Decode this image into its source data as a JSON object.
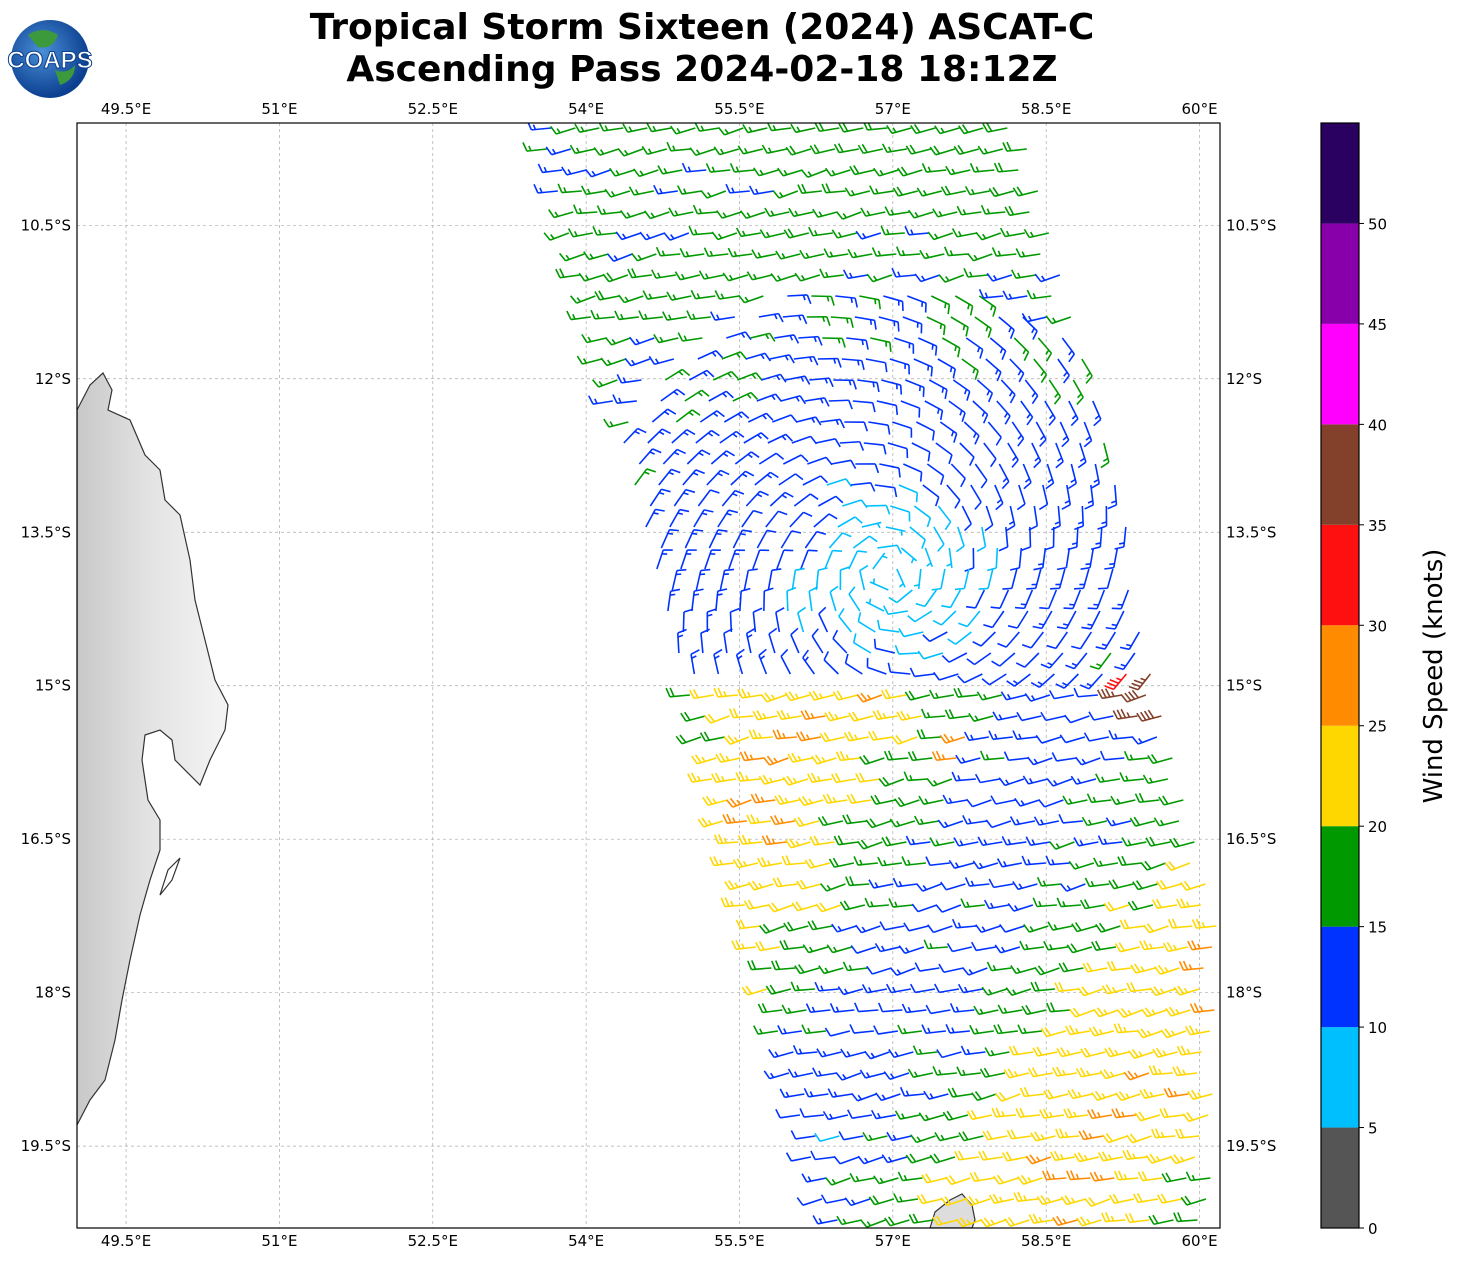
{
  "title": {
    "line1": "Tropical Storm Sixteen (2024) ASCAT-C",
    "line2": "Ascending Pass 2024-02-18 18:12Z"
  },
  "logo": {
    "text": "COAPS"
  },
  "map": {
    "lon_range": [
      49.02,
      60.2
    ],
    "lat_range": [
      -9.5,
      -20.3
    ],
    "lon_ticks": [
      {
        "v": 49.5,
        "label": "49.5°E"
      },
      {
        "v": 51,
        "label": "51°E"
      },
      {
        "v": 52.5,
        "label": "52.5°E"
      },
      {
        "v": 54,
        "label": "54°E"
      },
      {
        "v": 55.5,
        "label": "55.5°E"
      },
      {
        "v": 57,
        "label": "57°E"
      },
      {
        "v": 58.5,
        "label": "58.5°E"
      },
      {
        "v": 60,
        "label": "60°E"
      }
    ],
    "lat_ticks": [
      {
        "v": -10.5,
        "label": "10.5°S"
      },
      {
        "v": -12,
        "label": "12°S"
      },
      {
        "v": -13.5,
        "label": "13.5°S"
      },
      {
        "v": -15,
        "label": "15°S"
      },
      {
        "v": -16.5,
        "label": "16.5°S"
      },
      {
        "v": -18,
        "label": "18°S"
      },
      {
        "v": -19.5,
        "label": "19.5°S"
      }
    ]
  },
  "colorbar": {
    "label": "Wind Speed (knots)",
    "range": [
      0,
      55
    ],
    "tick_labels": [
      "0",
      "5",
      "10",
      "15",
      "20",
      "25",
      "30",
      "35",
      "40",
      "45",
      "50"
    ],
    "bins": [
      {
        "min": 0,
        "max": 5,
        "color": "#555555"
      },
      {
        "min": 5,
        "max": 10,
        "color": "#00bfff"
      },
      {
        "min": 10,
        "max": 15,
        "color": "#0033ff"
      },
      {
        "min": 15,
        "max": 20,
        "color": "#009900"
      },
      {
        "min": 20,
        "max": 25,
        "color": "#ffd700"
      },
      {
        "min": 25,
        "max": 30,
        "color": "#ff8c00"
      },
      {
        "min": 30,
        "max": 35,
        "color": "#ff1010"
      },
      {
        "min": 35,
        "max": 40,
        "color": "#83402a"
      },
      {
        "min": 40,
        "max": 45,
        "color": "#ff00ff"
      },
      {
        "min": 45,
        "max": 50,
        "color": "#8800aa"
      },
      {
        "min": 50,
        "max": 55,
        "color": "#2a0060"
      }
    ]
  }
}
